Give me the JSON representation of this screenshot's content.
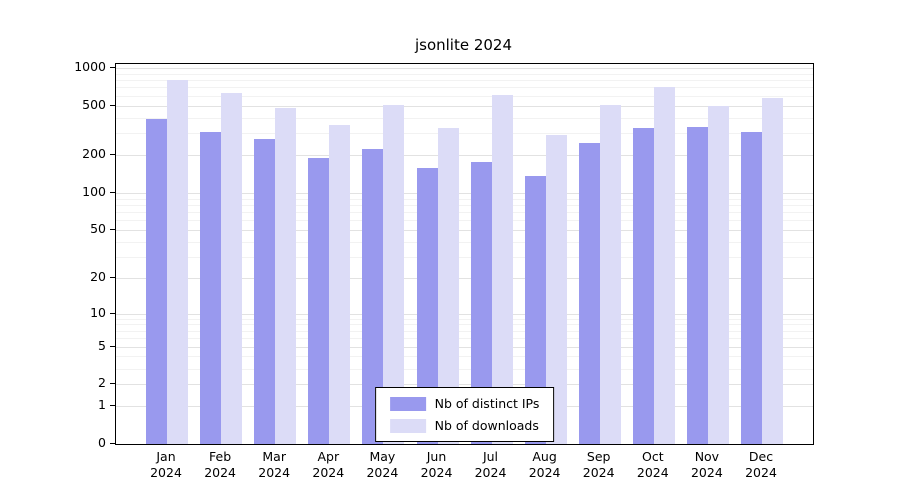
{
  "chart_data": {
    "type": "bar",
    "title": "jsonlite 2024",
    "xlabel": "",
    "ylabel": "",
    "scale": "log(v+1)",
    "grid": true,
    "legend_position": "bottom-center",
    "year": "2024",
    "categories": [
      "Jan",
      "Feb",
      "Mar",
      "Apr",
      "May",
      "Jun",
      "Jul",
      "Aug",
      "Sep",
      "Oct",
      "Nov",
      "Dec"
    ],
    "series": [
      {
        "name": "Nb of distinct IPs",
        "color": "#9999ee",
        "values": [
          390,
          310,
          270,
          190,
          225,
          160,
          178,
          137,
          250,
          330,
          335,
          310
        ]
      },
      {
        "name": "Nb of downloads",
        "color": "#dcdcf7",
        "values": [
          810,
          630,
          480,
          350,
          510,
          330,
          610,
          290,
          510,
          700,
          495,
          575
        ]
      }
    ],
    "y_ticks": [
      0,
      1,
      2,
      5,
      10,
      20,
      50,
      100,
      200,
      500,
      1000
    ],
    "minor_gridlines": [
      3,
      4,
      6,
      7,
      8,
      9,
      30,
      40,
      60,
      70,
      80,
      90,
      300,
      400,
      600,
      700,
      800,
      900
    ],
    "ylim": [
      0,
      1000
    ]
  }
}
